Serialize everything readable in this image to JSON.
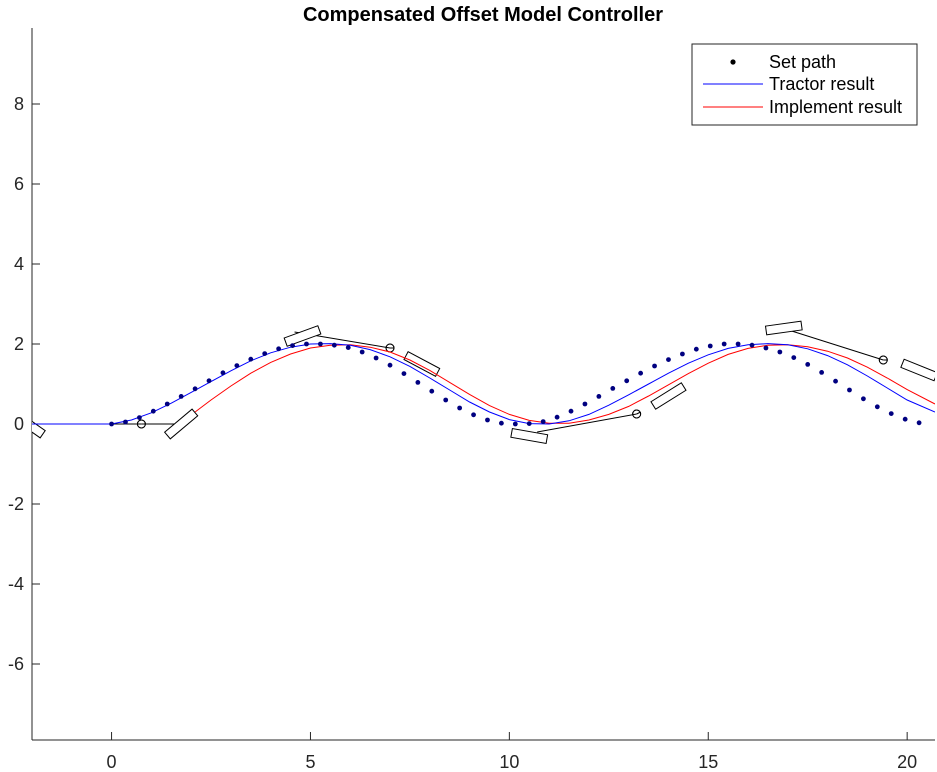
{
  "chart_data": {
    "type": "line",
    "title": "Compensated Offset Model Controller",
    "xlabel": "",
    "ylabel": "",
    "xlim": [
      -2,
      20.7
    ],
    "ylim": [
      -7.9,
      9.9
    ],
    "xticks": [
      0,
      5,
      10,
      15,
      20
    ],
    "yticks": [
      -6,
      -4,
      -2,
      0,
      2,
      4,
      6,
      8
    ],
    "xtick_labels": [
      "0",
      "5",
      "10",
      "15",
      "20"
    ],
    "ytick_labels": [
      "-6",
      "-4",
      "-2",
      "0",
      "2",
      "4",
      "6",
      "8"
    ],
    "grid": false,
    "legend_position": "top-right",
    "series": [
      {
        "name": "Set path",
        "style": "dots",
        "color": "#000080",
        "x": [
          0,
          0.35,
          0.7,
          1.05,
          1.4,
          1.75,
          2.1,
          2.45,
          2.8,
          3.15,
          3.5,
          3.85,
          4.2,
          4.55,
          4.9,
          5.25,
          5.6,
          5.95,
          6.3,
          6.65,
          7.0,
          7.35,
          7.7,
          8.05,
          8.4,
          8.75,
          9.1,
          9.45,
          9.8,
          10.15,
          10.5,
          10.85,
          11.2,
          11.55,
          11.9,
          12.25,
          12.6,
          12.95,
          13.3,
          13.65,
          14.0,
          14.35,
          14.7,
          15.05,
          15.4,
          15.75,
          16.1,
          16.45,
          16.8,
          17.15,
          17.5,
          17.85,
          18.2,
          18.55,
          18.9,
          19.25,
          19.6,
          19.95,
          20.3
        ],
        "y": [
          0,
          0.05,
          0.16,
          0.32,
          0.5,
          0.69,
          0.88,
          1.08,
          1.28,
          1.46,
          1.62,
          1.76,
          1.88,
          1.96,
          2.0,
          2.0,
          1.97,
          1.91,
          1.8,
          1.65,
          1.47,
          1.26,
          1.04,
          0.82,
          0.6,
          0.4,
          0.23,
          0.1,
          0.02,
          0.0,
          0.01,
          0.06,
          0.17,
          0.32,
          0.5,
          0.69,
          0.89,
          1.08,
          1.27,
          1.45,
          1.61,
          1.75,
          1.87,
          1.95,
          2.0,
          2.0,
          1.97,
          1.9,
          1.8,
          1.66,
          1.49,
          1.29,
          1.07,
          0.85,
          0.63,
          0.43,
          0.26,
          0.12,
          0.03
        ]
      },
      {
        "name": "Tractor result",
        "style": "line",
        "color": "#0000ff",
        "x": [
          -2,
          -1,
          0,
          0.5,
          1.0,
          1.5,
          2.0,
          2.5,
          3.0,
          3.5,
          4.0,
          4.5,
          5.0,
          5.5,
          6.0,
          6.5,
          7.0,
          7.5,
          8.0,
          8.5,
          9.0,
          9.5,
          10.0,
          10.5,
          11.0,
          11.5,
          12.0,
          12.5,
          13.0,
          13.5,
          14.0,
          14.5,
          15.0,
          15.5,
          16.0,
          16.5,
          17.0,
          17.5,
          18.0,
          18.5,
          19.0,
          19.5,
          20.0,
          20.7
        ],
        "y": [
          0,
          0,
          0,
          0.1,
          0.28,
          0.52,
          0.79,
          1.06,
          1.33,
          1.58,
          1.78,
          1.92,
          2.0,
          2.01,
          1.97,
          1.86,
          1.68,
          1.44,
          1.15,
          0.85,
          0.55,
          0.3,
          0.11,
          0.01,
          0.0,
          0.08,
          0.24,
          0.47,
          0.73,
          1.0,
          1.27,
          1.52,
          1.73,
          1.89,
          1.98,
          2.01,
          1.98,
          1.88,
          1.71,
          1.48,
          1.2,
          0.9,
          0.6,
          0.3
        ]
      },
      {
        "name": "Implement result",
        "style": "line",
        "color": "#ff0000",
        "x": [
          2.1,
          2.5,
          3.0,
          3.5,
          4.0,
          4.5,
          5.0,
          5.5,
          6.0,
          6.5,
          7.0,
          7.5,
          8.0,
          8.5,
          9.0,
          9.5,
          10.0,
          10.5,
          11.0,
          11.5,
          12.0,
          12.5,
          13.0,
          13.5,
          14.0,
          14.5,
          15.0,
          15.5,
          16.0,
          16.5,
          17.0,
          17.5,
          18.0,
          18.5,
          19.0,
          19.5,
          20.0,
          20.7
        ],
        "y": [
          0.3,
          0.6,
          0.95,
          1.27,
          1.54,
          1.75,
          1.9,
          1.97,
          1.98,
          1.92,
          1.8,
          1.6,
          1.34,
          1.04,
          0.74,
          0.46,
          0.24,
          0.09,
          0.02,
          0.02,
          0.1,
          0.24,
          0.44,
          0.7,
          0.98,
          1.26,
          1.52,
          1.74,
          1.89,
          1.97,
          1.98,
          1.93,
          1.82,
          1.65,
          1.42,
          1.15,
          0.86,
          0.5
        ]
      }
    ],
    "vehicle_snapshots": [
      {
        "tractor": [
          -0.4,
          0.0,
          0
        ],
        "implement": [
          -2.1,
          0.0,
          -35
        ],
        "marker": [
          0.75,
          0.0
        ],
        "implement_line": [
          -1.4,
          0.0
        ]
      },
      {
        "tractor": [
          1.75,
          0.0,
          0
        ],
        "implement": [
          1.75,
          0.0,
          40
        ],
        "marker": [
          0.75,
          0.0
        ],
        "implement_line": [
          1.8,
          0.0
        ]
      },
      {
        "tractor": [
          6.3,
          2.0,
          -10
        ],
        "implement": [
          4.8,
          2.2,
          20
        ],
        "marker": [
          7.0,
          1.9
        ],
        "implement_line": [
          4.6,
          2.3
        ]
      },
      {
        "tractor": [
          7.8,
          1.5,
          -28
        ],
        "implement": [
          7.8,
          1.5,
          -28
        ],
        "marker": [
          7.0,
          1.9
        ],
        "implement_line": [
          7.1,
          1.9
        ]
      },
      {
        "tractor": [
          12.3,
          0.1,
          14
        ],
        "implement": [
          10.5,
          -0.3,
          -10
        ],
        "marker": [
          13.2,
          0.25
        ],
        "implement_line": [
          10.7,
          -0.2
        ]
      },
      {
        "tractor": [
          14.0,
          0.7,
          32
        ],
        "implement": [
          14.0,
          0.7,
          32
        ],
        "marker": [
          13.2,
          0.25
        ],
        "implement_line": [
          13.3,
          0.3
        ]
      },
      {
        "tractor": [
          18.6,
          1.85,
          -22
        ],
        "implement": [
          16.9,
          2.4,
          8
        ],
        "marker": [
          19.4,
          1.6
        ],
        "implement_line": [
          16.7,
          2.45
        ]
      },
      {
        "tractor": [
          20.3,
          1.35,
          -22
        ],
        "implement": [
          20.3,
          1.35,
          -22
        ],
        "marker": [
          19.4,
          1.6
        ],
        "implement_line": [
          19.5,
          1.6
        ]
      }
    ]
  }
}
